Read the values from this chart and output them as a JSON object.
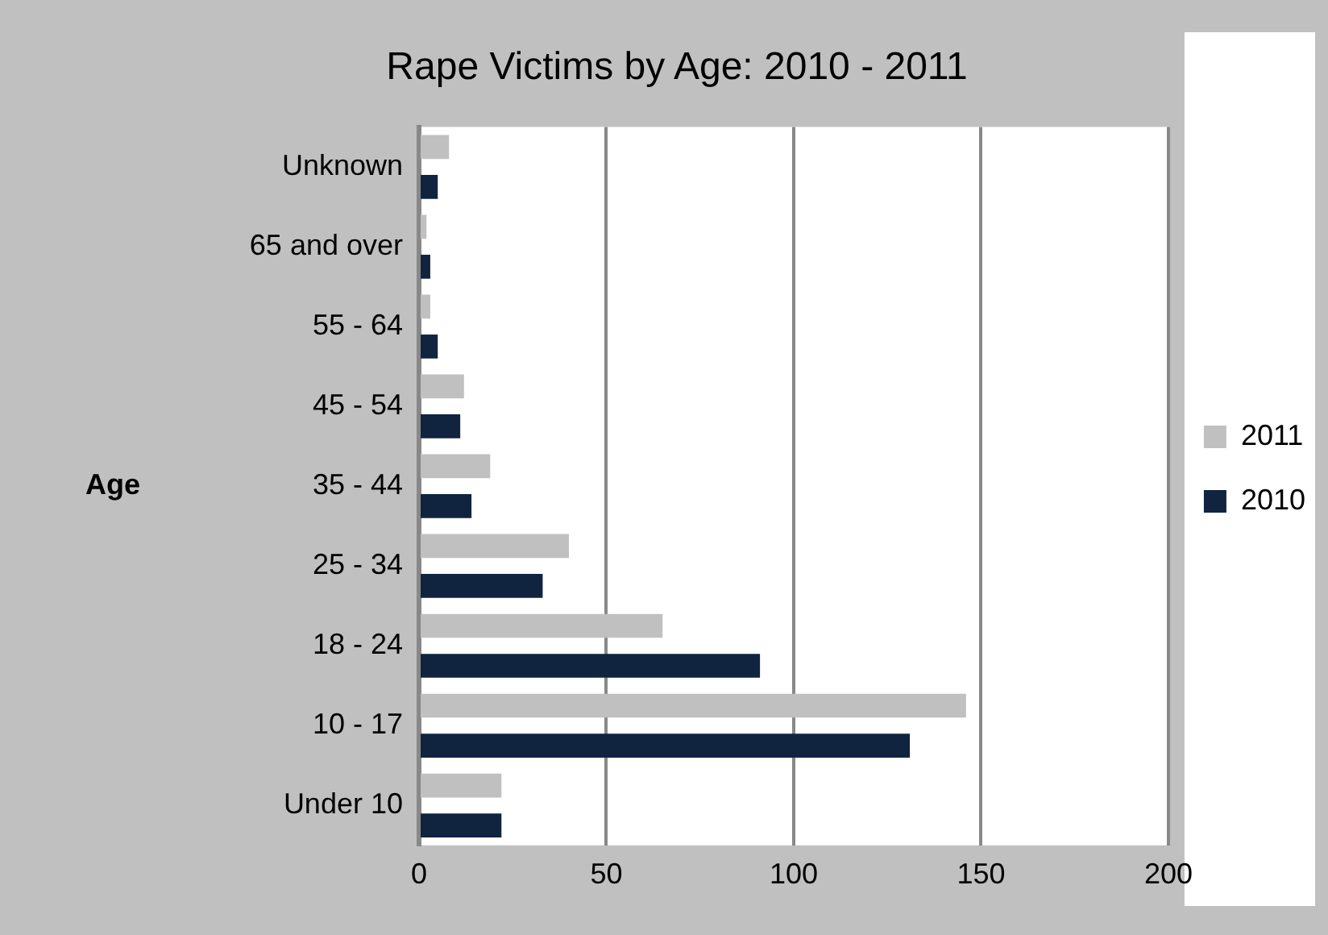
{
  "chart_data": {
    "type": "bar",
    "orientation": "horizontal",
    "title": "Rape Victims by Age: 2010 - 2011",
    "ylabel": "Age",
    "categories": [
      "Unknown",
      "65 and over",
      "55 - 64",
      "45 - 54",
      "35 - 44",
      "25 - 34",
      "18 - 24",
      "10 - 17",
      "Under 10"
    ],
    "series": [
      {
        "name": "2011",
        "color": "#c0c0c0",
        "values": [
          8,
          2,
          3,
          12,
          19,
          40,
          65,
          146,
          22
        ]
      },
      {
        "name": "2010",
        "color": "#10243f",
        "values": [
          5,
          3,
          5,
          11,
          14,
          33,
          91,
          131,
          22
        ]
      }
    ],
    "xlim": [
      0,
      200
    ],
    "xticks": [
      0,
      50,
      100,
      150,
      200
    ],
    "grid": "x",
    "legend": "right"
  }
}
